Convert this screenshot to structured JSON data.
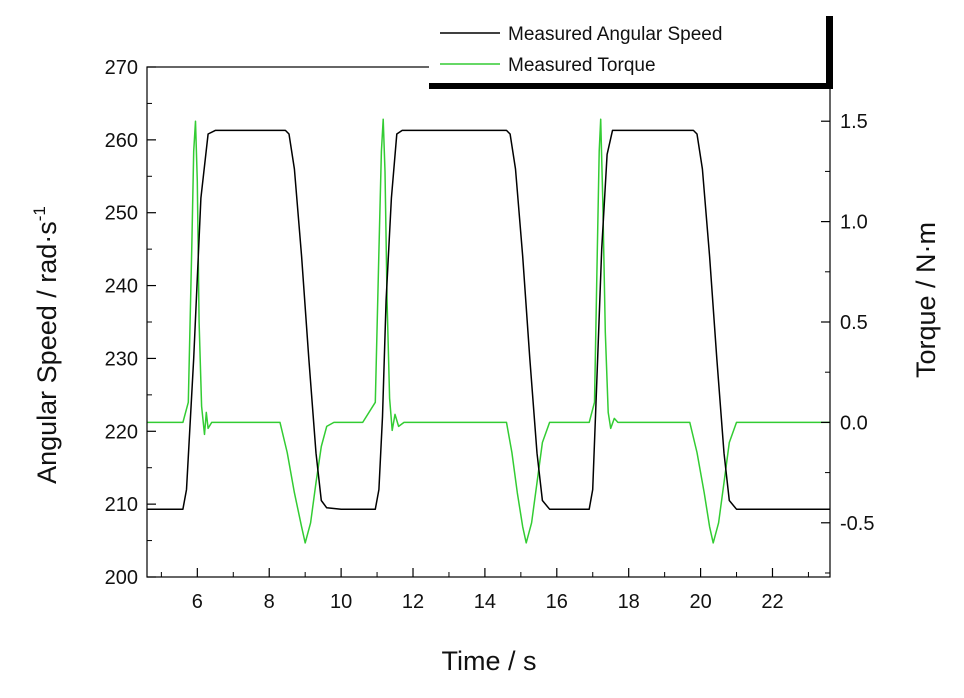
{
  "chart_data": {
    "type": "line",
    "xlabel": "Time / s",
    "ylabel_left": "Angular Speed / rad·s",
    "ylabel_left_superscript": "-1",
    "ylabel_right": "Torque / N·m",
    "xlim": [
      4.6,
      23.6
    ],
    "ylim_left": [
      200,
      270
    ],
    "ylim_right": [
      -0.77,
      1.77
    ],
    "xticks": [
      "6",
      "8",
      "10",
      "12",
      "14",
      "16",
      "18",
      "20",
      "22"
    ],
    "yticks_left": [
      "200",
      "210",
      "220",
      "230",
      "240",
      "250",
      "260",
      "270"
    ],
    "yticks_right": [
      "-0.5",
      "0.0",
      "0.5",
      "1.0",
      "1.5"
    ],
    "legend_position": "top-right",
    "series": [
      {
        "name": "Measured Angular Speed",
        "axis": "left",
        "color": "#000000",
        "x": [
          4.6,
          5.6,
          5.7,
          5.9,
          6.1,
          6.3,
          6.5,
          8.45,
          8.55,
          8.7,
          8.9,
          9.1,
          9.3,
          9.45,
          9.6,
          10.0,
          10.6,
          10.95,
          11.05,
          11.15,
          11.25,
          11.4,
          11.55,
          11.7,
          14.6,
          14.7,
          14.85,
          15.05,
          15.25,
          15.45,
          15.6,
          15.8,
          16.0,
          16.6,
          16.9,
          17.0,
          17.1,
          17.25,
          17.4,
          17.55,
          19.8,
          19.9,
          20.05,
          20.25,
          20.45,
          20.65,
          20.8,
          21.0,
          23.6
        ],
        "y": [
          209.3,
          209.3,
          212,
          230,
          252,
          260.8,
          261.3,
          261.3,
          260.8,
          256,
          244,
          230,
          217,
          210.5,
          209.5,
          209.3,
          209.3,
          209.3,
          212,
          222,
          238,
          252,
          260.8,
          261.3,
          261.3,
          260.8,
          256,
          244,
          230,
          217,
          210.5,
          209.3,
          209.3,
          209.3,
          209.3,
          212,
          225,
          245,
          258,
          261.3,
          261.3,
          260.8,
          256,
          244,
          230,
          217,
          210.5,
          209.3,
          209.3
        ]
      },
      {
        "name": "Measured Torque",
        "axis": "right",
        "color": "#33cc33",
        "x": [
          4.6,
          5.6,
          5.75,
          5.85,
          5.9,
          5.95,
          6.0,
          6.05,
          6.12,
          6.2,
          6.25,
          6.3,
          6.4,
          8.3,
          8.5,
          8.7,
          8.9,
          9.0,
          9.15,
          9.3,
          9.45,
          9.6,
          9.8,
          10.6,
          10.95,
          11.05,
          11.12,
          11.17,
          11.22,
          11.28,
          11.35,
          11.42,
          11.5,
          11.6,
          11.75,
          14.6,
          14.75,
          14.9,
          15.05,
          15.15,
          15.3,
          15.45,
          15.6,
          15.8,
          16.9,
          17.05,
          17.12,
          17.18,
          17.22,
          17.28,
          17.35,
          17.43,
          17.5,
          17.6,
          17.7,
          19.7,
          19.9,
          20.1,
          20.25,
          20.35,
          20.5,
          20.65,
          20.8,
          21.0,
          23.6
        ],
        "y": [
          0.0,
          0.0,
          0.1,
          0.9,
          1.35,
          1.5,
          1.2,
          0.5,
          0.08,
          -0.06,
          0.05,
          -0.03,
          0.0,
          0.0,
          -0.15,
          -0.35,
          -0.52,
          -0.6,
          -0.5,
          -0.3,
          -0.12,
          -0.02,
          0.0,
          0.0,
          0.1,
          0.85,
          1.35,
          1.51,
          1.25,
          0.6,
          0.12,
          -0.04,
          0.04,
          -0.02,
          0.0,
          0.0,
          -0.15,
          -0.35,
          -0.52,
          -0.6,
          -0.5,
          -0.3,
          -0.1,
          0.0,
          0.0,
          0.1,
          0.8,
          1.35,
          1.51,
          1.1,
          0.45,
          0.05,
          -0.03,
          0.02,
          0.0,
          0.0,
          -0.15,
          -0.35,
          -0.52,
          -0.6,
          -0.5,
          -0.3,
          -0.1,
          0.0,
          0.0
        ]
      }
    ]
  }
}
